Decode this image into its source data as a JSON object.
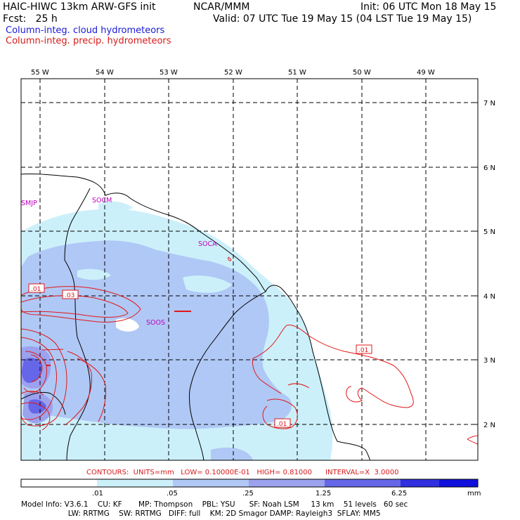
{
  "header": {
    "left1": "HAIC-HIWC 13km ARW-GFS init",
    "org": "NCAR/MMM",
    "init": "Init: 06 UTC Mon 18 May 15",
    "fcst": "Fcst:   25 h",
    "valid": "Valid: 07 UTC Tue 19 May 15 (04 LST Tue 19 May 15)",
    "legend_cloud": "Column-integ. cloud hydrometeors",
    "legend_precip": "Column-integ. precip. hydrometeors"
  },
  "map": {
    "lon_labels": [
      "55 W",
      "54 W",
      "53 W",
      "52 W",
      "51 W",
      "50 W",
      "49 W"
    ],
    "lat_labels": [
      "7 N",
      "6 N",
      "5 N",
      "4 N",
      "3 N",
      "2 N"
    ],
    "stations": [
      "SMJP",
      "SOCM",
      "SOCA",
      "SOOS"
    ],
    "contour_labels": [
      ".01",
      ".03",
      ".01",
      ".01"
    ]
  },
  "contours_line": "CONTOURS:  UNITS=mm   LOW= 0.10000E-01   HIGH= 0.81000      INTERVAL=X  3.0000",
  "colorbar": {
    "tick_labels": [
      ".01",
      ".05",
      ".25",
      "1.25",
      "6.25"
    ],
    "units": "mm",
    "colors": [
      "#ffffff",
      "#ccf0fa",
      "#b0c8f5",
      "#9ca2ee",
      "#6666e8",
      "#3030e0",
      "#1010dc"
    ]
  },
  "footer": {
    "line1": "Model Info: V3.6.1    CU: KF       MP: Thompson    PBL: YSU      SF: Noah LSM     13 km    51 levels   60 sec",
    "line2": "                    LW: RRTMG    SW: RRTMG   DIFF: full    KM: 2D Smagor DAMP: Rayleigh3  SFLAY: MM5"
  }
}
